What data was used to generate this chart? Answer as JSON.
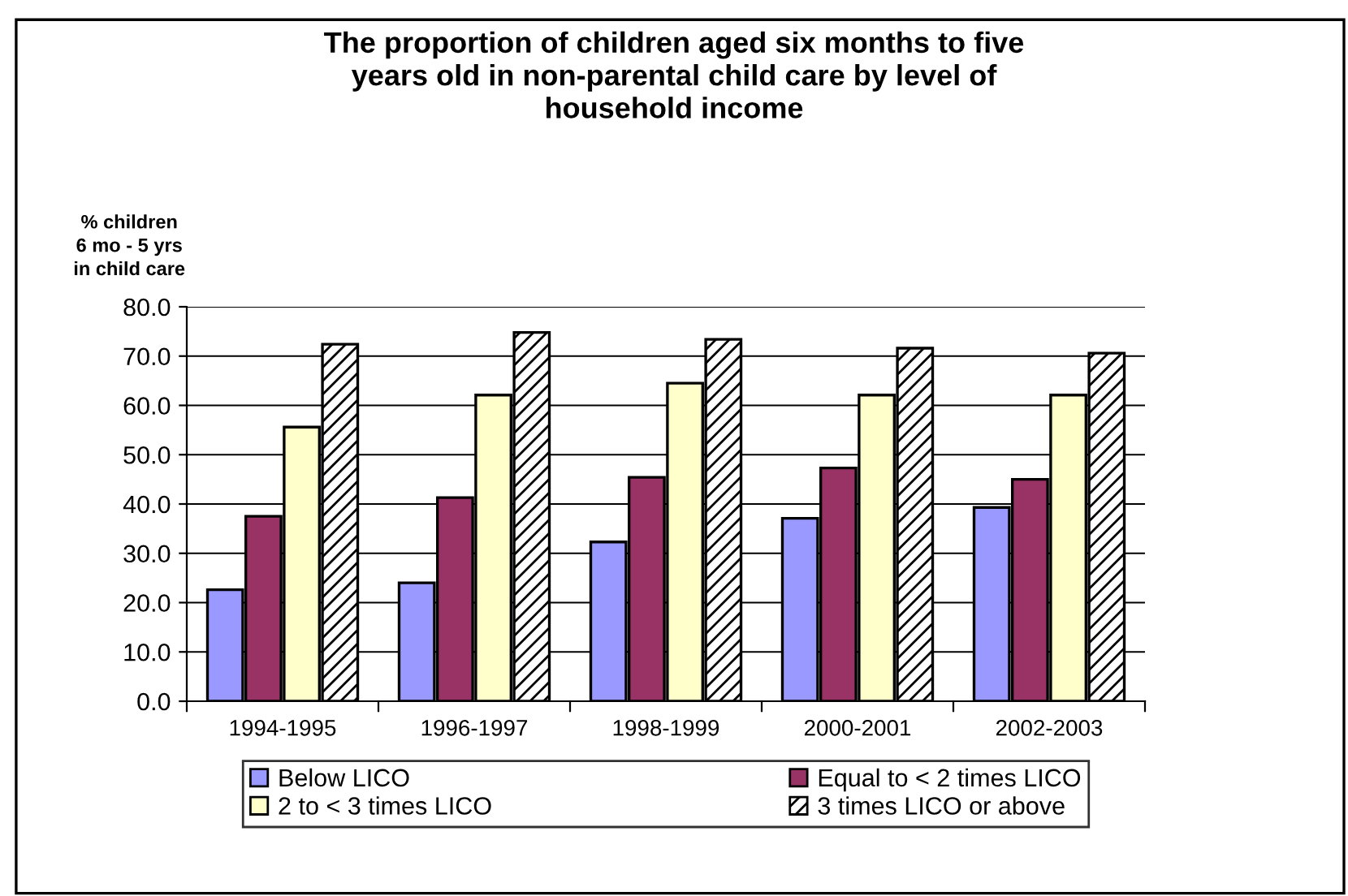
{
  "chart_data": {
    "type": "bar",
    "title": "The proportion of children aged six months to five\nyears old in non-parental child care by level of\nhousehold income",
    "ylabel": "% children\n6 mo - 5 yrs\nin child care",
    "categories": [
      "1994-1995",
      "1996-1997",
      "1998-1999",
      "2000-2001",
      "2002-2003"
    ],
    "series": [
      {
        "name": "Below LICO",
        "color": "#9999ff",
        "values": [
          22.6,
          24.0,
          32.3,
          37.1,
          39.3
        ]
      },
      {
        "name": "Equal to < 2 times LICO",
        "color": "#993366",
        "values": [
          37.5,
          41.3,
          45.4,
          47.3,
          45.0
        ]
      },
      {
        "name": "2 to < 3 times LICO",
        "color": "#ffffcc",
        "values": [
          55.6,
          62.1,
          64.5,
          62.1,
          62.1
        ]
      },
      {
        "name": "3 times LICO or above",
        "color": "#ffffff",
        "values": [
          72.4,
          74.8,
          73.4,
          71.6,
          70.6
        ]
      }
    ],
    "ylim": [
      0,
      80
    ],
    "yticks": [
      {
        "value": 0,
        "label": "0.0"
      },
      {
        "value": 10,
        "label": "10.0"
      },
      {
        "value": 20,
        "label": "20.0"
      },
      {
        "value": 30,
        "label": "30.0"
      },
      {
        "value": 40,
        "label": "40.0"
      },
      {
        "value": 50,
        "label": "50.0"
      },
      {
        "value": 60,
        "label": "60.0"
      },
      {
        "value": 70,
        "label": "70.0"
      },
      {
        "value": 80,
        "label": "80.0"
      }
    ],
    "grid": "y",
    "legend": "bottom"
  }
}
